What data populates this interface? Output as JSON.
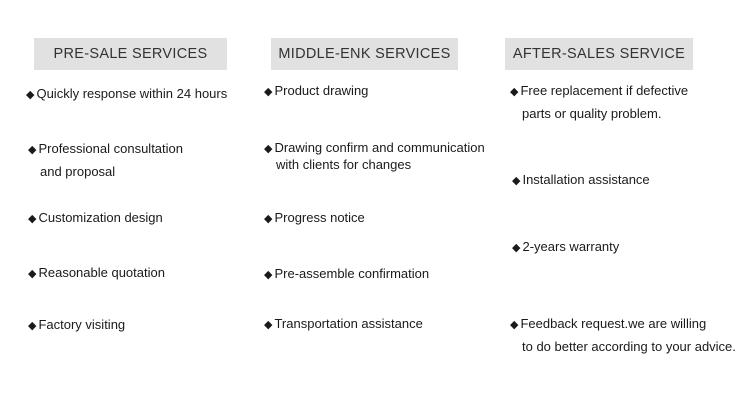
{
  "columns": [
    {
      "title": "PRE-SALE SERVICES",
      "items": [
        {
          "lines": [
            "Quickly response within 24 hours"
          ]
        },
        {
          "lines": [
            "Professional consultation",
            "and proposal"
          ]
        },
        {
          "lines": [
            "Customization design"
          ]
        },
        {
          "lines": [
            "Reasonable quotation"
          ]
        },
        {
          "lines": [
            "Factory visiting"
          ]
        }
      ]
    },
    {
      "title": "MIDDLE-ENK SERVICES",
      "items": [
        {
          "lines": [
            "Product drawing"
          ]
        },
        {
          "lines": [
            "Drawing confirm and communication",
            "with clients for changes"
          ]
        },
        {
          "lines": [
            "Progress notice"
          ]
        },
        {
          "lines": [
            "Pre-assemble confirmation"
          ]
        },
        {
          "lines": [
            "Transportation assistance"
          ]
        }
      ]
    },
    {
      "title": "AFTER-SALES SERVICE",
      "items": [
        {
          "lines": [
            "Free replacement if defective",
            "parts or quality problem."
          ]
        },
        {
          "lines": [
            "Installation assistance"
          ]
        },
        {
          "lines": [
            "2-years warranty"
          ]
        },
        {
          "lines": [
            "Feedback request.we are willing",
            "to do better according to your advice."
          ]
        }
      ]
    }
  ],
  "bullet": "◆"
}
